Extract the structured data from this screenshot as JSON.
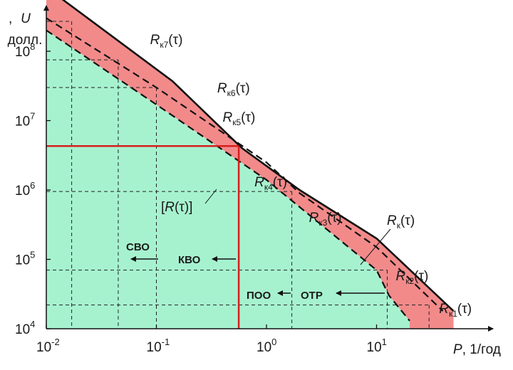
{
  "chart_data": {
    "type": "area",
    "scale": {
      "x": "log",
      "y": "log"
    },
    "xlim": [
      0.01,
      100
    ],
    "ylim": [
      10000,
      1000000000
    ],
    "xlabel": {
      "var": "P",
      "unit": ", 1/год"
    },
    "ylabel": {
      "var": "U",
      "unit": "долл."
    },
    "x_ticks": [
      {
        "base": "10",
        "exp": "-2"
      },
      {
        "base": "10",
        "exp": "-1"
      },
      {
        "base": "10",
        "exp": "0"
      },
      {
        "base": "10",
        "exp": "1"
      }
    ],
    "y_ticks": [
      {
        "base": "10",
        "exp": "4"
      },
      {
        "base": "10",
        "exp": "5"
      },
      {
        "base": "10",
        "exp": "6"
      },
      {
        "base": "10",
        "exp": "7"
      },
      {
        "base": "10",
        "exp": "8"
      }
    ],
    "colors": {
      "safe_zone": "#a6f2cf",
      "risk_band": "#f28a8a",
      "red_line": "#d81e1e",
      "curve": "#111111"
    },
    "upper_curve": {
      "name": "R",
      "sub": "к",
      "points": [
        [
          0.0132,
          600000000
        ],
        [
          0.14,
          37000000
        ],
        [
          0.6,
          4000000
        ],
        [
          2.0,
          1000000
        ],
        [
          10,
          200000
        ],
        [
          50,
          18000
        ]
      ]
    },
    "dashed_curve": {
      "points": [
        [
          0.01,
          300000000
        ],
        [
          0.1,
          30000000
        ],
        [
          1,
          2500000
        ],
        [
          2,
          900000
        ],
        [
          10,
          150000
        ],
        [
          40,
          18000
        ]
      ]
    },
    "lower_curve": {
      "name": "[R(τ)]",
      "points": [
        [
          0.01,
          200000000
        ],
        [
          0.1,
          17000000
        ],
        [
          1,
          1400000
        ],
        [
          10,
          70000
        ],
        [
          13,
          30000
        ],
        [
          20,
          13000
        ]
      ]
    },
    "curve_points": [
      {
        "name": "R",
        "sub": "к7",
        "tau": "(τ)",
        "x": 0.017,
        "y": 270000000
      },
      {
        "name": "R",
        "sub": "к6",
        "tau": "(τ)",
        "x": 0.045,
        "y": 75000000
      },
      {
        "name": "R",
        "sub": "к5",
        "tau": "(τ)",
        "x": 0.1,
        "y": 30000000
      },
      {
        "name": "R",
        "sub": "к4",
        "tau": "(τ)",
        "x": 0.56,
        "y": 4300000
      },
      {
        "name": "R",
        "sub": "к3",
        "tau": "(τ)",
        "x": 1.7,
        "y": 950000
      },
      {
        "name": "R",
        "sub": "к2",
        "tau": "(τ)",
        "x": 12.5,
        "y": 70000
      },
      {
        "name": "R",
        "sub": "к1",
        "tau": "(τ)",
        "x": 30,
        "y": 22000
      }
    ],
    "red_point": {
      "x": 0.56,
      "y": 4300000
    },
    "zones": [
      {
        "label": "СВО",
        "x": 0.07,
        "y": 200000
      },
      {
        "label": "КВО",
        "x": 0.25,
        "y": 110000
      },
      {
        "label": "ПОО",
        "x": 1.5,
        "y": 33000
      },
      {
        "label": "ОТР",
        "x": 5,
        "y": 33000
      }
    ]
  }
}
